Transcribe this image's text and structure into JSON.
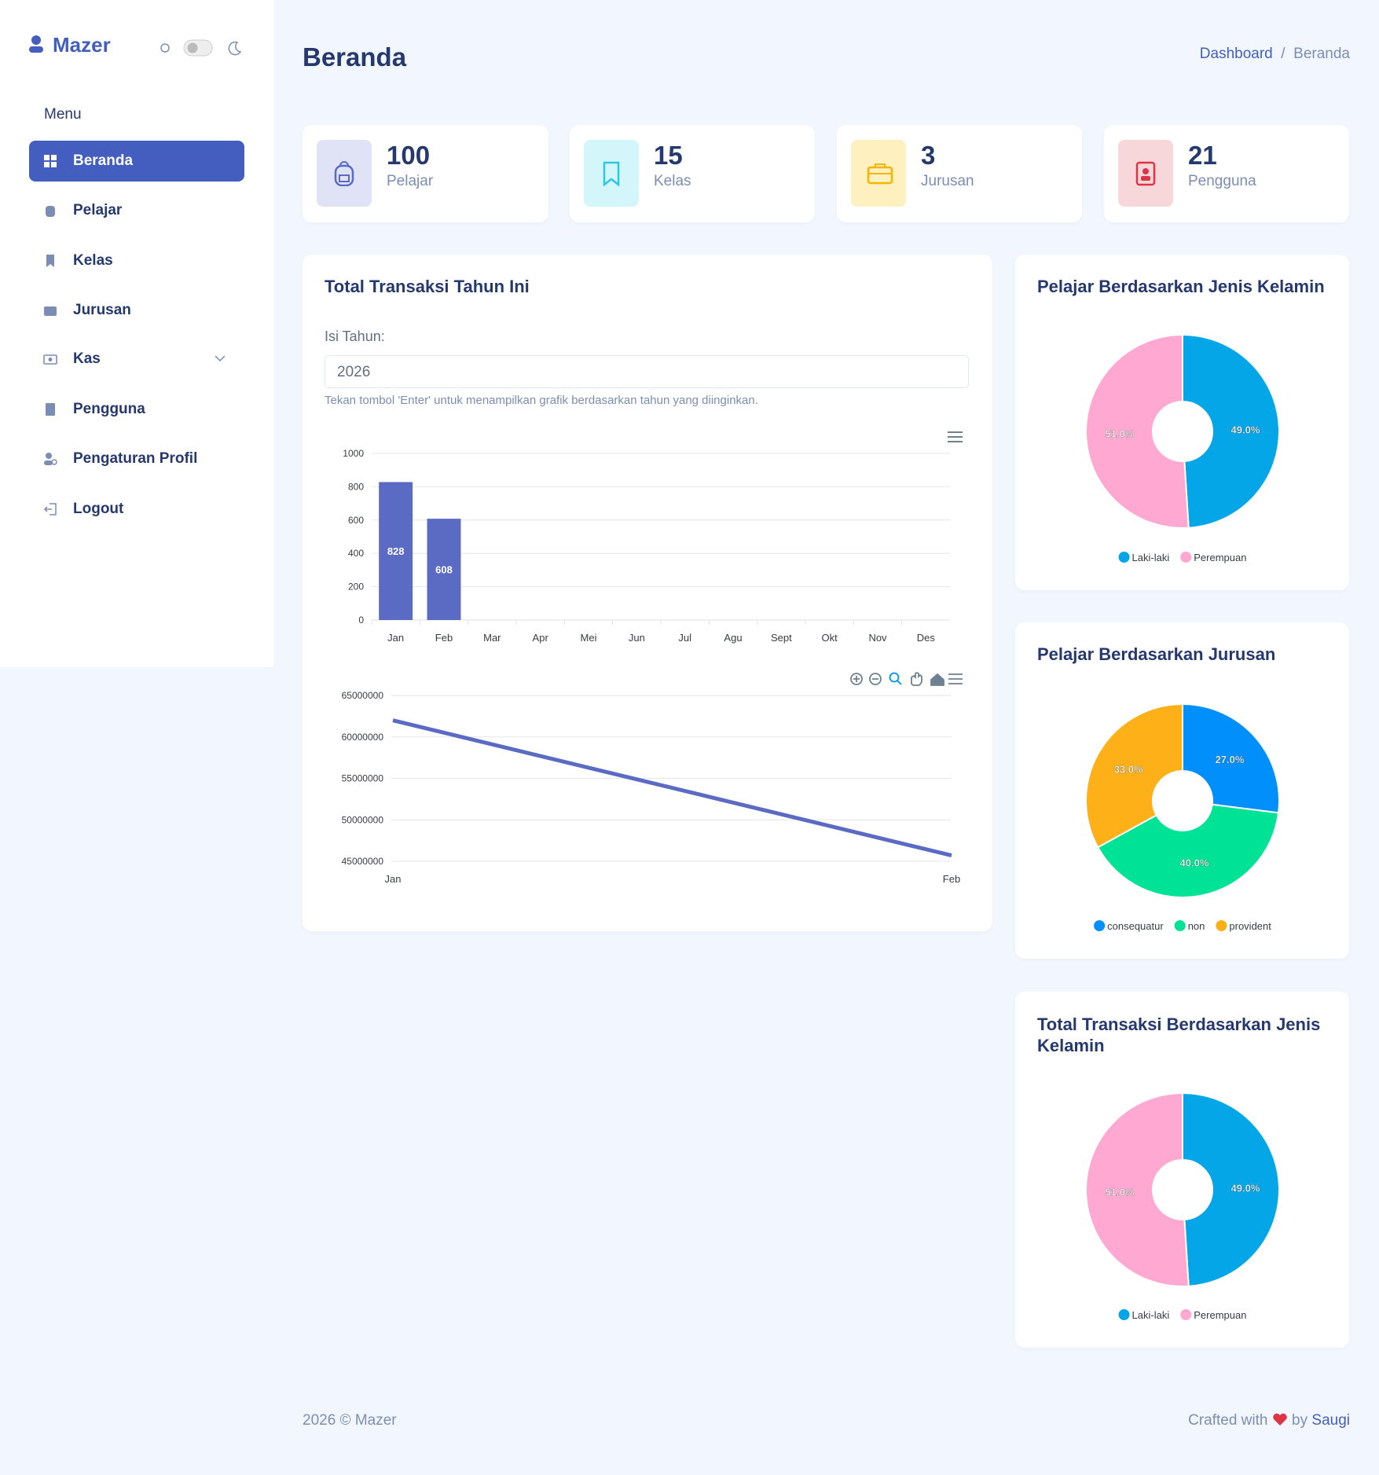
{
  "sidebar": {
    "brand": "Mazer",
    "menu_title": "Menu",
    "items": [
      "Beranda",
      "Pelajar",
      "Kelas",
      "Jurusan",
      "Kas",
      "Pengguna",
      "Pengaturan Profil",
      "Logout"
    ]
  },
  "header": {
    "title": "Beranda",
    "breadcrumb": [
      "Dashboard",
      "Beranda"
    ]
  },
  "stats": [
    {
      "value": 100,
      "label": "Pelajar"
    },
    {
      "value": 15,
      "label": "Kelas"
    },
    {
      "value": 3,
      "label": "Jurusan"
    },
    {
      "value": 21,
      "label": "Pengguna"
    }
  ],
  "transactions": {
    "title": "Total Transaksi Tahun Ini",
    "input_label": "Isi Tahun:",
    "input_value": "2026",
    "help": "Tekan tombol 'Enter' untuk menampilkan grafik berdasarkan tahun yang diinginkan."
  },
  "chart_data": [
    {
      "type": "bar",
      "categories": [
        "Jan",
        "Feb",
        "Mar",
        "Apr",
        "Mei",
        "Jun",
        "Jul",
        "Agu",
        "Sept",
        "Okt",
        "Nov",
        "Des"
      ],
      "values": [
        828,
        608,
        null,
        null,
        null,
        null,
        null,
        null,
        null,
        null,
        null,
        null
      ],
      "color": "#5b6bc4",
      "ylim": [
        0,
        1000
      ],
      "yticks": [
        0,
        200,
        400,
        600,
        800,
        1000
      ],
      "grid": true
    },
    {
      "type": "line",
      "categories": [
        "Jan",
        "Feb"
      ],
      "values": [
        62000000,
        45700000
      ],
      "color": "#5b6bc4",
      "ylim": [
        45000000,
        65000000
      ],
      "yticks": [
        45000000,
        50000000,
        55000000,
        60000000,
        65000000
      ],
      "grid": true
    },
    {
      "type": "donut",
      "title": "Pelajar Berdasarkan Jenis Kelamin",
      "categories": [
        "Laki-laki",
        "Perempuan"
      ],
      "values": [
        49,
        51
      ],
      "value_labels": [
        "49.0%",
        "51.0%"
      ],
      "colors": [
        "#05a6e8",
        "#ffa8d2"
      ]
    },
    {
      "type": "donut",
      "title": "Pelajar Berdasarkan Jurusan",
      "categories": [
        "consequatur",
        "non",
        "provident"
      ],
      "values": [
        27,
        40,
        33
      ],
      "value_labels": [
        "27.0%",
        "40.0%",
        "33.0%"
      ],
      "colors": [
        "#008ffb",
        "#00e396",
        "#feb019"
      ]
    },
    {
      "type": "donut",
      "title": "Total Transaksi Berdasarkan Jenis Kelamin",
      "categories": [
        "Laki-laki",
        "Perempuan"
      ],
      "values": [
        49,
        51
      ],
      "value_labels": [
        "49.0%",
        "51.0%"
      ],
      "colors": [
        "#05a6e8",
        "#ffa8d2"
      ]
    }
  ],
  "footer": {
    "copyright": "2026 © Mazer",
    "crafted": "Crafted with",
    "by": "by",
    "author": "Saugi"
  }
}
